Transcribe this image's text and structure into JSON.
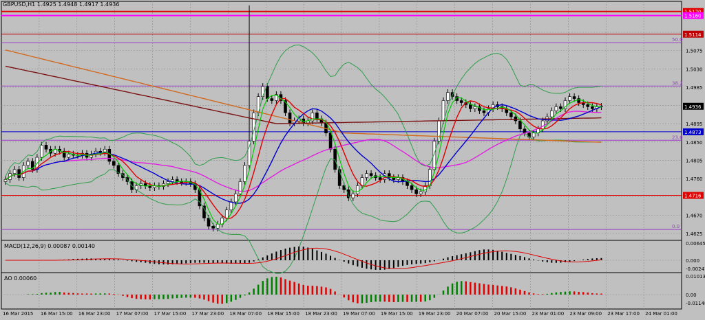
{
  "header": {
    "symbol": "GBPUSD,H1",
    "ohlc": "1.4925 1.4948 1.4917 1.4936"
  },
  "main_axis": {
    "ticks": [
      "1.5125",
      "1.5075",
      "1.5030",
      "1.4985",
      "1.4940",
      "1.4895",
      "1.4850",
      "1.4805",
      "1.4760",
      "1.4715",
      "1.4670",
      "1.4625"
    ]
  },
  "price_tags": [
    {
      "label": "1.5170",
      "color": "#e00000",
      "value": 1.517
    },
    {
      "label": "1.5160",
      "color": "#ff00ff",
      "value": 1.516
    },
    {
      "label": "1.5114",
      "color": "#c00000",
      "value": 1.5114
    },
    {
      "label": "1.4936",
      "color": "#000000",
      "value": 1.4936
    },
    {
      "label": "1.4873",
      "color": "#0000cc",
      "value": 1.4873
    },
    {
      "label": "1.4716",
      "color": "#e00000",
      "value": 1.4716
    }
  ],
  "fibo_labels": [
    "50.0",
    "38.2",
    "23.6",
    "0.0"
  ],
  "macd": {
    "title": "MACD(12,26,9) 0.00087 0.00140",
    "ticks": [
      "0.00645",
      "0.000",
      "-0.00241"
    ]
  },
  "ao": {
    "title": "AO 0.00060",
    "ticks": [
      "0.01013",
      "0.00",
      "-0.01148"
    ]
  },
  "time_axis": {
    "labels": [
      "16 Mar 2015",
      "16 Mar 15:00",
      "16 Mar 23:00",
      "17 Mar 07:00",
      "17 Mar 15:00",
      "17 Mar 23:00",
      "18 Mar 07:00",
      "18 Mar 15:00",
      "18 Mar 23:00",
      "19 Mar 07:00",
      "19 Mar 15:00",
      "19 Mar 23:00",
      "20 Mar 07:00",
      "20 Mar 15:00",
      "23 Mar 01:00",
      "23 Mar 09:00",
      "23 Mar 17:00",
      "24 Mar 01:00"
    ]
  },
  "colors": {
    "background": "#c0c0c0",
    "grid": "#8c8c8c",
    "candle_bull": "#ffffff",
    "candle_bear": "#000000",
    "bollinger": "#2e9e4a",
    "ma_fast_green": "#00cc00",
    "ma_red": "#e00000",
    "ma_blue": "#0000cc",
    "ma_magenta": "#e020e0",
    "ma_orange": "#d2691e",
    "ma_darkred": "#7a0f0f",
    "fibo": "#9a40c8",
    "ao_up": "#008000",
    "ao_down": "#e00000"
  },
  "chart_data": [
    {
      "type": "candlestick",
      "title": "GBPUSD,H1",
      "ylim": [
        1.4605,
        1.5195
      ],
      "horizontal_levels": [
        1.517,
        1.516,
        1.5114,
        1.4873,
        1.4716
      ],
      "fibonacci": {
        "0.0": 1.4632,
        "23.6": 1.4852,
        "38.2": 1.4986,
        "50.0": 1.5093
      },
      "closes": [
        1.4755,
        1.477,
        1.478,
        1.476,
        1.479,
        1.48,
        1.478,
        1.481,
        1.484,
        1.483,
        1.482,
        1.483,
        1.4825,
        1.481,
        1.4818,
        1.4815,
        1.4815,
        1.482,
        1.481,
        1.4818,
        1.4825,
        1.4822,
        1.483,
        1.48,
        1.479,
        1.477,
        1.476,
        1.475,
        1.473,
        1.474,
        1.4745,
        1.474,
        1.4735,
        1.474,
        1.4738,
        1.4745,
        1.475,
        1.4755,
        1.475,
        1.4748,
        1.475,
        1.4745,
        1.473,
        1.469,
        1.466,
        1.464,
        1.4635,
        1.4645,
        1.466,
        1.468,
        1.47,
        1.472,
        1.475,
        1.479,
        1.485,
        1.492,
        1.496,
        1.4985,
        1.4955,
        1.495,
        1.4965,
        1.495,
        1.492,
        1.4895,
        1.49,
        1.4905,
        1.4895,
        1.49,
        1.492,
        1.4905,
        1.4895,
        1.487,
        1.483,
        1.478,
        1.474,
        1.473,
        1.471,
        1.472,
        1.474,
        1.476,
        1.477,
        1.4765,
        1.476,
        1.4755,
        1.477,
        1.476,
        1.4755,
        1.476,
        1.475,
        1.474,
        1.473,
        1.472,
        1.4725,
        1.474,
        1.478,
        1.485,
        1.49,
        1.495,
        1.497,
        1.496,
        1.495,
        1.4945,
        1.494,
        1.493,
        1.4935,
        1.4925,
        1.492,
        1.493,
        1.494,
        1.4935,
        1.493,
        1.492,
        1.491,
        1.49,
        1.488,
        1.487,
        1.486,
        1.487,
        1.488,
        1.49,
        1.491,
        1.4925,
        1.4935,
        1.493,
        1.495,
        1.496,
        1.4955,
        1.4945,
        1.494,
        1.4935,
        1.493,
        1.4935,
        1.4936
      ]
    },
    {
      "type": "bar",
      "title": "MACD(12,26,9) 0.00087 0.00140",
      "ylim": [
        -0.00241,
        0.00645
      ]
    },
    {
      "type": "bar",
      "title": "AO 0.00060",
      "ylim": [
        -0.01148,
        0.01013
      ]
    }
  ]
}
